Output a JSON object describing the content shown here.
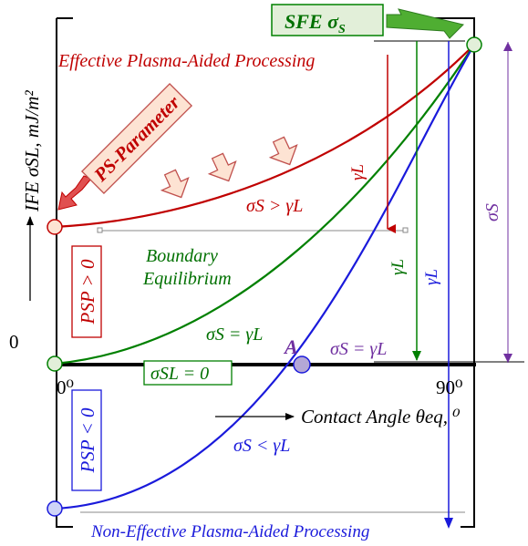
{
  "labels": {
    "sfe": "SFE σ",
    "sfe_sub": "S",
    "effective": "Effective Plasma-Aided Processing",
    "non_effective": "Non-Effective Plasma-Aided Processing",
    "ps_parameter": "PS-Parameter",
    "psp_positive": "PSP > 0",
    "psp_negative": "PSP < 0",
    "boundary_1": "Boundary",
    "boundary_2": "Equilibrium",
    "sigma_sl_zero": "σSL = 0",
    "point_a": "A",
    "ylabel": "IFE σSL, mJ/m²",
    "xlabel": "Contact Angle θeq, ⁰",
    "zero": "0",
    "x_start": "0⁰",
    "x_end": "90⁰",
    "cond_gt": "σS > γL",
    "cond_eq_green": "σS = γL",
    "cond_eq_purple": "σS = γL",
    "cond_lt": "σS < γL",
    "gamma_red": "γL",
    "gamma_green": "γL",
    "gamma_blue": "γL",
    "sigma_s_right": "σS"
  },
  "colors": {
    "red": "#c00000",
    "green": "#008000",
    "blue": "#1a1adb",
    "purple": "#7030a0",
    "arrow_fill": "#fde3d3",
    "arrow_stroke": "#c0504d",
    "sfe_box_fill": "#e2efd9",
    "point_a_fill": "#b4a7d6"
  }
}
